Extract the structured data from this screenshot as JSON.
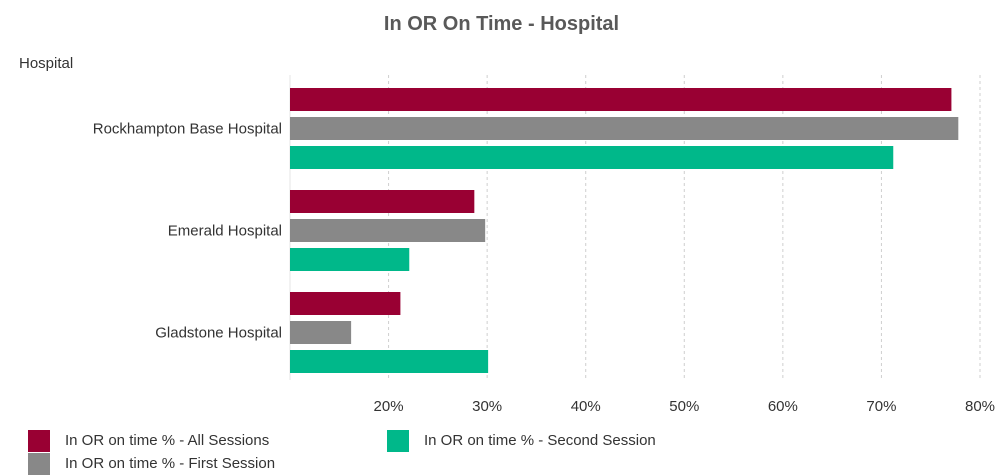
{
  "chart_data": {
    "type": "bar",
    "orientation": "horizontal",
    "title": "In OR  On Time - Hospital",
    "dimension_label": "Hospital",
    "categories": [
      "Rockhampton Base Hospital",
      "Emerald Hospital",
      "Gladstone Hospital"
    ],
    "series": [
      {
        "name": "In OR on time % - All Sessions",
        "color": "#990033",
        "values": [
          77.1,
          28.7,
          21.2
        ]
      },
      {
        "name": "In OR on time % - First Session",
        "color": "#888888",
        "values": [
          77.8,
          29.8,
          16.2
        ]
      },
      {
        "name": "In OR on time % - Second Session",
        "color": "#00b88a",
        "values": [
          71.2,
          22.1,
          30.1
        ]
      }
    ],
    "xlim": [
      10,
      80
    ],
    "x_ticks": [
      20,
      30,
      40,
      50,
      60,
      70,
      80
    ],
    "x_tick_labels": [
      "20%",
      "30%",
      "40%",
      "50%",
      "60%",
      "70%",
      "80%"
    ],
    "grid": true,
    "legend_position": "bottom-left"
  }
}
